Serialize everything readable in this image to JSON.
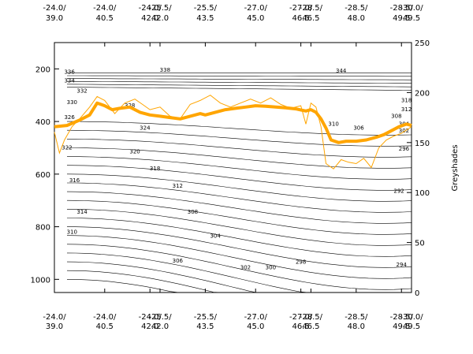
{
  "chart_data": {
    "type": "line",
    "x_ticks": [
      {
        "lon": "-24.0/",
        "lat": "39.0"
      },
      {
        "lon": "-24.0/",
        "lat": "40.5"
      },
      {
        "lon": "-24.0/",
        "lat": "42.0"
      },
      {
        "lon": "-25.5/",
        "lat": "42.0"
      },
      {
        "lon": "-25.5/",
        "lat": "43.5"
      },
      {
        "lon": "-27.0/",
        "lat": "45.0"
      },
      {
        "lon": "-27.0/",
        "lat": "46.5"
      },
      {
        "lon": "-28.5/",
        "lat": "46.5"
      },
      {
        "lon": "-28.5/",
        "lat": "48.0"
      },
      {
        "lon": "-28.5/",
        "lat": "49.5"
      },
      {
        "lon": "-30.0/",
        "lat": "49.5"
      }
    ],
    "x_positions": [
      0,
      1,
      1.9,
      2.1,
      3,
      4,
      4.9,
      5.1,
      6,
      6.9,
      7.1
    ],
    "x_range": [
      0,
      7.1
    ],
    "y_left": {
      "ticks": [
        200,
        400,
        600,
        800,
        1000
      ],
      "range": [
        100,
        1050
      ],
      "inverted": true
    },
    "y_right": {
      "label": "Greyshades",
      "ticks": [
        0,
        50,
        100,
        150,
        200,
        250
      ],
      "range": [
        0,
        250
      ]
    },
    "contour_levels": [
      292,
      294,
      296,
      298,
      300,
      302,
      304,
      306,
      308,
      310,
      312,
      314,
      316,
      318,
      320,
      322,
      324,
      326,
      328,
      330,
      332,
      334,
      336,
      338,
      344
    ],
    "contour_labels": [
      {
        "text": "336",
        "x": 0.3,
        "y": 212
      },
      {
        "text": "334",
        "x": 0.3,
        "y": 245
      },
      {
        "text": "332",
        "x": 0.55,
        "y": 285
      },
      {
        "text": "330",
        "x": 0.35,
        "y": 328
      },
      {
        "text": "328",
        "x": 1.5,
        "y": 340
      },
      {
        "text": "326",
        "x": 0.3,
        "y": 385
      },
      {
        "text": "324",
        "x": 1.8,
        "y": 425
      },
      {
        "text": "322",
        "x": 0.25,
        "y": 500
      },
      {
        "text": "320",
        "x": 1.6,
        "y": 515
      },
      {
        "text": "318",
        "x": 2.0,
        "y": 580
      },
      {
        "text": "316",
        "x": 0.4,
        "y": 625
      },
      {
        "text": "314",
        "x": 0.55,
        "y": 745
      },
      {
        "text": "312",
        "x": 2.45,
        "y": 645
      },
      {
        "text": "310",
        "x": 0.35,
        "y": 820
      },
      {
        "text": "308",
        "x": 2.75,
        "y": 745
      },
      {
        "text": "306",
        "x": 2.45,
        "y": 930
      },
      {
        "text": "304",
        "x": 3.2,
        "y": 835
      },
      {
        "text": "302",
        "x": 3.8,
        "y": 955
      },
      {
        "text": "300",
        "x": 4.3,
        "y": 955
      },
      {
        "text": "298",
        "x": 4.9,
        "y": 935
      },
      {
        "text": "296",
        "x": 6.95,
        "y": 505
      },
      {
        "text": "294",
        "x": 6.9,
        "y": 945
      },
      {
        "text": "292",
        "x": 6.85,
        "y": 665
      },
      {
        "text": "338",
        "x": 2.2,
        "y": 205
      },
      {
        "text": "344",
        "x": 5.7,
        "y": 208
      },
      {
        "text": "318",
        "x": 7.0,
        "y": 320
      },
      {
        "text": "312",
        "x": 7.0,
        "y": 355
      },
      {
        "text": "310",
        "x": 5.55,
        "y": 410
      },
      {
        "text": "308",
        "x": 6.8,
        "y": 380
      },
      {
        "text": "306",
        "x": 6.05,
        "y": 425
      },
      {
        "text": "304",
        "x": 6.95,
        "y": 410
      },
      {
        "text": "302",
        "x": 6.95,
        "y": 435
      }
    ],
    "thick_series": [
      [
        0,
        420
      ],
      [
        0.25,
        415
      ],
      [
        0.5,
        395
      ],
      [
        0.7,
        375
      ],
      [
        0.85,
        330
      ],
      [
        1.0,
        340
      ],
      [
        1.15,
        355
      ],
      [
        1.3,
        350
      ],
      [
        1.5,
        345
      ],
      [
        1.7,
        365
      ],
      [
        1.9,
        375
      ],
      [
        2.1,
        380
      ],
      [
        2.3,
        385
      ],
      [
        2.5,
        390
      ],
      [
        2.7,
        380
      ],
      [
        2.9,
        370
      ],
      [
        3.0,
        375
      ],
      [
        3.2,
        365
      ],
      [
        3.4,
        355
      ],
      [
        3.6,
        350
      ],
      [
        3.8,
        345
      ],
      [
        4.0,
        340
      ],
      [
        4.2,
        342
      ],
      [
        4.4,
        345
      ],
      [
        4.6,
        348
      ],
      [
        4.8,
        352
      ],
      [
        5.0,
        360
      ],
      [
        5.1,
        355
      ],
      [
        5.2,
        365
      ],
      [
        5.3,
        390
      ],
      [
        5.4,
        425
      ],
      [
        5.5,
        470
      ],
      [
        5.65,
        480
      ],
      [
        5.8,
        475
      ],
      [
        6.0,
        475
      ],
      [
        6.2,
        470
      ],
      [
        6.4,
        460
      ],
      [
        6.55,
        450
      ],
      [
        6.7,
        435
      ],
      [
        6.85,
        420
      ],
      [
        7.0,
        410
      ],
      [
        7.1,
        415
      ]
    ],
    "thin_series": [
      [
        0,
        440
      ],
      [
        0.1,
        520
      ],
      [
        0.2,
        470
      ],
      [
        0.35,
        420
      ],
      [
        0.5,
        390
      ],
      [
        0.7,
        345
      ],
      [
        0.85,
        305
      ],
      [
        1.0,
        320
      ],
      [
        1.2,
        370
      ],
      [
        1.4,
        330
      ],
      [
        1.6,
        315
      ],
      [
        1.75,
        335
      ],
      [
        1.9,
        355
      ],
      [
        2.1,
        345
      ],
      [
        2.3,
        380
      ],
      [
        2.5,
        390
      ],
      [
        2.7,
        335
      ],
      [
        2.9,
        320
      ],
      [
        3.1,
        300
      ],
      [
        3.3,
        330
      ],
      [
        3.5,
        345
      ],
      [
        3.7,
        330
      ],
      [
        3.9,
        315
      ],
      [
        4.1,
        330
      ],
      [
        4.3,
        310
      ],
      [
        4.5,
        335
      ],
      [
        4.7,
        350
      ],
      [
        4.9,
        340
      ],
      [
        5.0,
        410
      ],
      [
        5.1,
        330
      ],
      [
        5.2,
        345
      ],
      [
        5.3,
        420
      ],
      [
        5.4,
        560
      ],
      [
        5.55,
        580
      ],
      [
        5.7,
        545
      ],
      [
        5.85,
        555
      ],
      [
        6.0,
        560
      ],
      [
        6.15,
        540
      ],
      [
        6.3,
        575
      ],
      [
        6.45,
        500
      ],
      [
        6.6,
        470
      ],
      [
        6.75,
        455
      ],
      [
        6.9,
        445
      ],
      [
        7.1,
        420
      ]
    ],
    "colors": {
      "contour": "#000000",
      "thick_line": "#ffa500",
      "thin_line": "#ffa500",
      "background": "#ffffff"
    }
  }
}
